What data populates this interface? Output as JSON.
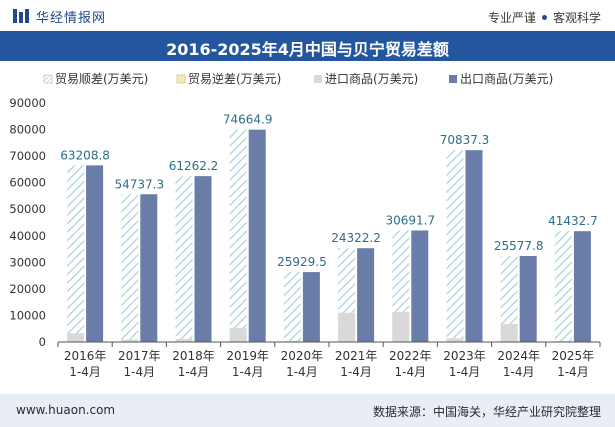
{
  "header": {
    "brand_name": "华经情报网",
    "slogan_left": "专业严谨",
    "slogan_right": "客观科学",
    "logo_icon": "huajing-logo-icon"
  },
  "footer": {
    "website": "www.huaon.com",
    "source": "数据来源：中国海关，华经产业研究院整理"
  },
  "colors": {
    "title_bg": "#23569e",
    "surplus_hatch": "#a9cfe0",
    "import": "#d9d9d9",
    "export": "#6a7da8",
    "label": "#2e6e87"
  },
  "chart_data": {
    "type": "bar",
    "title": "2016-2025年4月中国与贝宁贸易差额",
    "categories": [
      "2016年\n1-4月",
      "2017年\n1-4月",
      "2018年\n1-4月",
      "2019年\n1-4月",
      "2020年\n1-4月",
      "2021年\n1-4月",
      "2022年\n1-4月",
      "2023年\n1-4月",
      "2024年\n1-4月",
      "2025年\n1-4月"
    ],
    "series": [
      {
        "name": "贸易顺差(万美元)",
        "values": [
          63208.8,
          54737.3,
          61262.2,
          74664.9,
          25929.5,
          24322.2,
          30691.7,
          70837.3,
          25577.8,
          41432.7
        ]
      },
      {
        "name": "贸易逆差(万美元)",
        "values": [
          0,
          0,
          0,
          0,
          0,
          0,
          0,
          0,
          0,
          0
        ]
      },
      {
        "name": "进口商品(万美元)",
        "values": [
          3300,
          900,
          1200,
          5300,
          400,
          11000,
          11300,
          1400,
          6800,
          300
        ]
      },
      {
        "name": "出口商品(万美元)",
        "values": [
          66508.8,
          55637.3,
          62462.2,
          79964.9,
          26329.5,
          35322.2,
          41991.7,
          72237.3,
          32377.8,
          41732.7
        ]
      }
    ],
    "data_labels": [
      "63208.8",
      "54737.3",
      "61262.2",
      "74664.9",
      "25929.5",
      "24322.2",
      "30691.7",
      "70837.3",
      "25577.8",
      "41432.7"
    ],
    "ylim": [
      0,
      90000
    ],
    "yticks": [
      "0",
      "10000",
      "20000",
      "30000",
      "40000",
      "50000",
      "60000",
      "70000",
      "80000",
      "90000"
    ],
    "grid": false,
    "legend_position": "top-left"
  }
}
